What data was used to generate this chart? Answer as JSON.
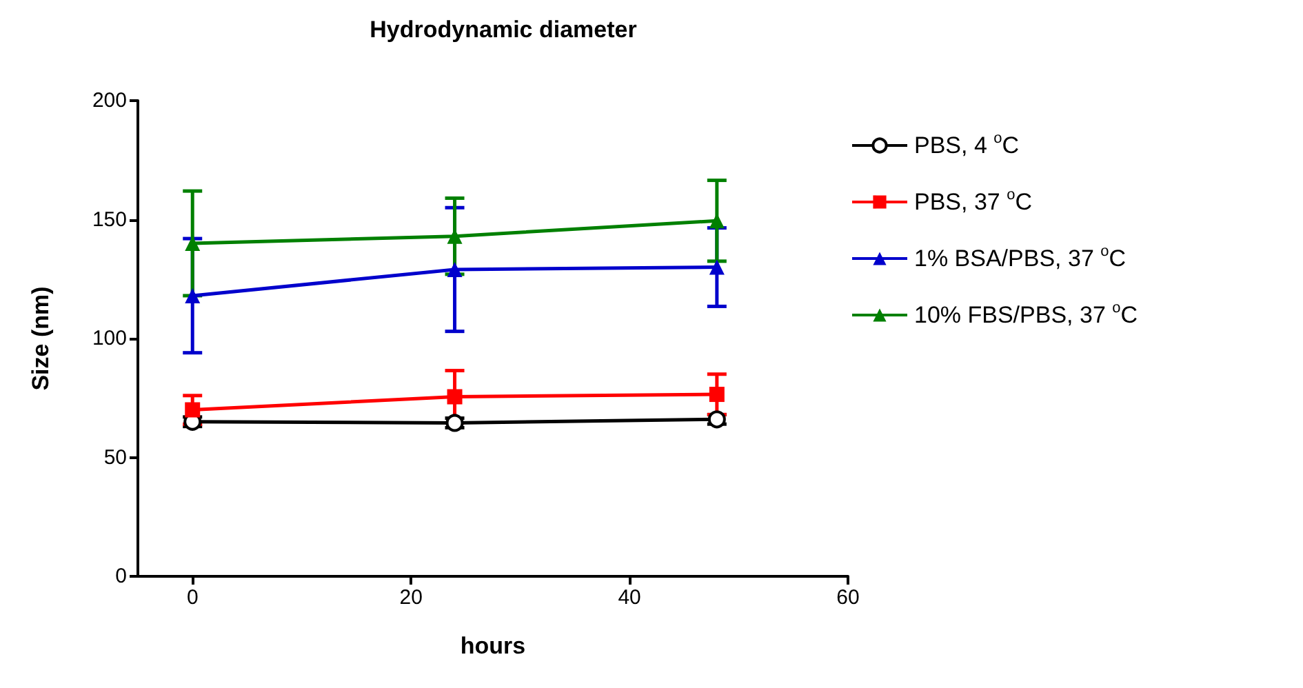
{
  "chart_data": {
    "type": "line",
    "title": "Hydrodynamic diameter",
    "xlabel": "hours",
    "ylabel": "Size (nm)",
    "x": [
      0,
      24,
      48
    ],
    "xlim": [
      -5,
      60
    ],
    "xticks": [
      0,
      20,
      40,
      60
    ],
    "ylim": [
      0,
      200
    ],
    "yticks": [
      0,
      50,
      100,
      150,
      200
    ],
    "grid": false,
    "legend": "right",
    "line_style": "solid",
    "series": [
      {
        "name": "PBS, 4 $^{o}$C",
        "color": "#000000",
        "marker": "circle",
        "values": [
          65,
          64.5,
          66
        ],
        "errors": [
          2,
          2,
          2
        ]
      },
      {
        "name": "PBS, 37 $^{o}$C",
        "color": "#ff0000",
        "marker": "square",
        "values": [
          70,
          75.5,
          76.5
        ],
        "errors": [
          6,
          11,
          8.5
        ]
      },
      {
        "name": "1% BSA/PBS, 37 $^{o}$C",
        "color": "#0000cc",
        "marker": "triangle",
        "values": [
          118,
          129,
          130
        ],
        "errors": [
          24,
          26,
          16.5
        ]
      },
      {
        "name": "10% FBS/PBS, 37 $^{o}$C",
        "color": "#008000",
        "marker": "triangle",
        "values": [
          140,
          143,
          149.5
        ],
        "errors": [
          22,
          16,
          17
        ]
      }
    ]
  }
}
